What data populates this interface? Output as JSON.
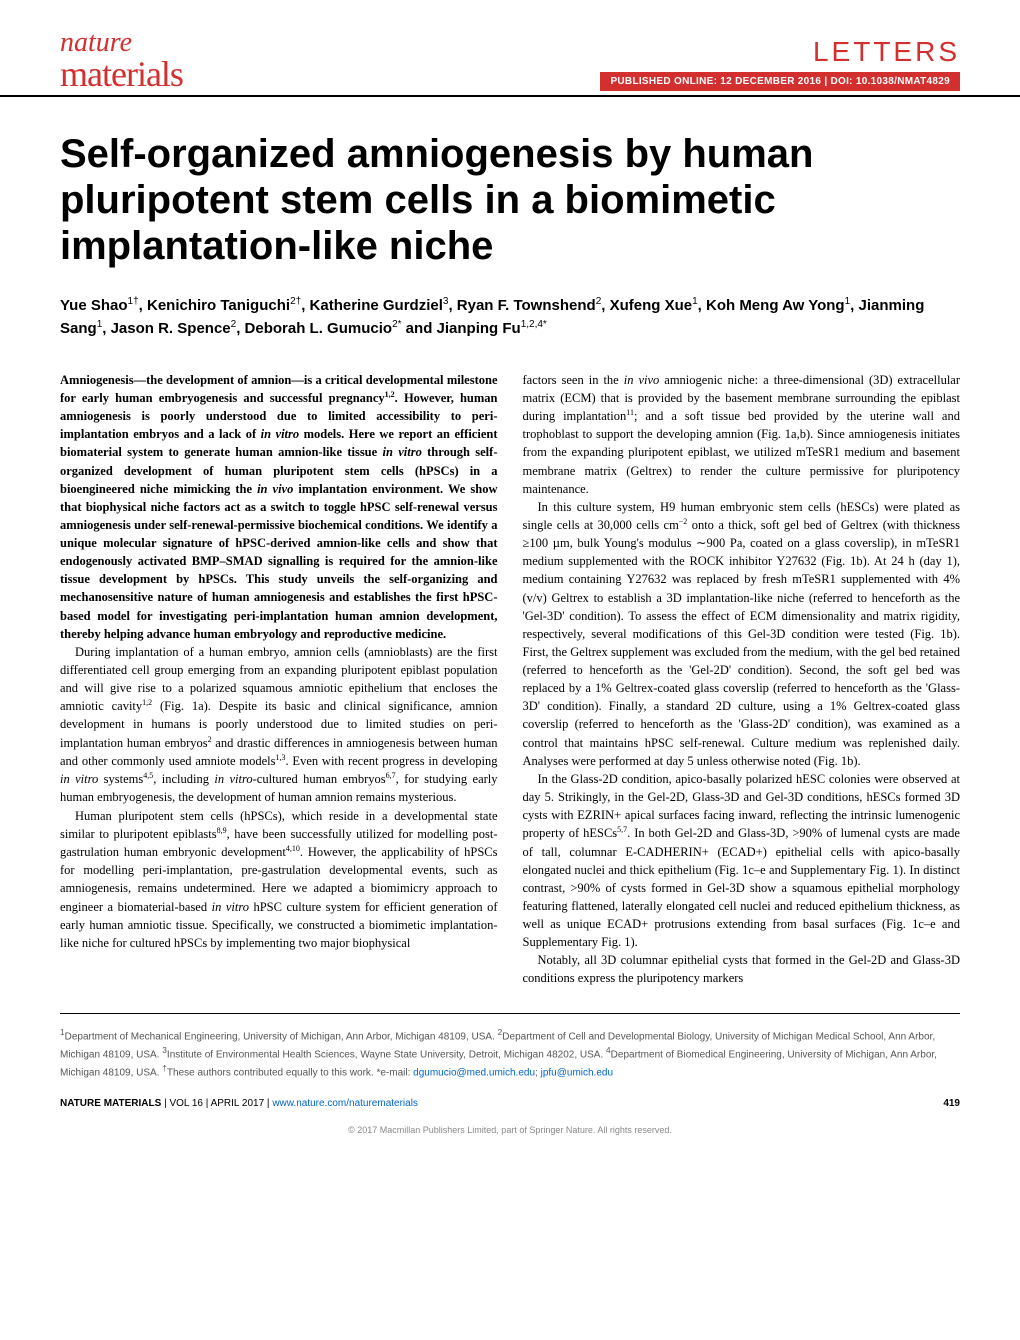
{
  "journal": {
    "line1": "nature",
    "line2": "materials",
    "brand_color": "#d32f2f"
  },
  "letters_label": "LETTERS",
  "pub_info": "PUBLISHED ONLINE: 12 DECEMBER 2016 | DOI: 10.1038/NMAT4829",
  "title": "Self-organized amniogenesis by human pluripotent stem cells in a biomimetic implantation-like niche",
  "authors_html": "Yue Shao<sup>1†</sup>, Kenichiro Taniguchi<sup>2†</sup>, Katherine Gurdziel<sup>3</sup>, Ryan F. Townshend<sup>2</sup>, Xufeng Xue<sup>1</sup>, Koh Meng Aw Yong<sup>1</sup>, Jianming Sang<sup>1</sup>, Jason R. Spence<sup>2</sup>, Deborah L. Gumucio<sup>2*</sup> and Jianping Fu<sup>1,2,4*</sup>",
  "abstract": "Amniogenesis—the development of amnion—is a critical developmental milestone for early human embryogenesis and successful pregnancy<sup>1,2</sup>. However, human amniogenesis is poorly understood due to limited accessibility to peri-implantation embryos and a lack of <em>in vitro</em> models. Here we report an efficient biomaterial system to generate human amnion-like tissue <em>in vitro</em> through self-organized development of human pluripotent stem cells (hPSCs) in a bioengineered niche mimicking the <em>in vivo</em> implantation environment. We show that biophysical niche factors act as a switch to toggle hPSC self-renewal versus amniogenesis under self-renewal-permissive biochemical conditions. We identify a unique molecular signature of hPSC-derived amnion-like cells and show that endogenously activated BMP–SMAD signalling is required for the amnion-like tissue development by hPSCs. This study unveils the self-organizing and mechanosensitive nature of human amniogenesis and establishes the first hPSC-based model for investigating peri-implantation human amnion development, thereby helping advance human embryology and reproductive medicine.",
  "col1_p1": "During implantation of a human embryo, amnion cells (amnioblasts) are the first differentiated cell group emerging from an expanding pluripotent epiblast population and will give rise to a polarized squamous amniotic epithelium that encloses the amniotic cavity<sup>1,2</sup> (Fig. 1a). Despite its basic and clinical significance, amnion development in humans is poorly understood due to limited studies on peri-implantation human embryos<sup>2</sup> and drastic differences in amniogenesis between human and other commonly used amniote models<sup>1,3</sup>. Even with recent progress in developing <em>in vitro</em> systems<sup>4,5</sup>, including <em>in vitro</em>-cultured human embryos<sup>6,7</sup>, for studying early human embryogenesis, the development of human amnion remains mysterious.",
  "col1_p2": "Human pluripotent stem cells (hPSCs), which reside in a developmental state similar to pluripotent epiblasts<sup>8,9</sup>, have been successfully utilized for modelling post-gastrulation human embryonic development<sup>4,10</sup>. However, the applicability of hPSCs for modelling peri-implantation, pre-gastrulation developmental events, such as amniogenesis, remains undetermined. Here we adapted a biomimicry approach to engineer a biomaterial-based <em>in vitro</em> hPSC culture system for efficient generation of early human amniotic tissue. Specifically, we constructed a biomimetic implantation-like niche for cultured hPSCs by implementing two major biophysical",
  "col2_p1": "factors seen in the <em>in vivo</em> amniogenic niche: a three-dimensional (3D) extracellular matrix (ECM) that is provided by the basement membrane surrounding the epiblast during implantation<sup>11</sup>; and a soft tissue bed provided by the uterine wall and trophoblast to support the developing amnion (Fig. 1a,b). Since amniogenesis initiates from the expanding pluripotent epiblast, we utilized mTeSR1 medium and basement membrane matrix (Geltrex) to render the culture permissive for pluripotency maintenance.",
  "col2_p2": "In this culture system, H9 human embryonic stem cells (hESCs) were plated as single cells at 30,000 cells cm<sup>−2</sup> onto a thick, soft gel bed of Geltrex (with thickness ≥100 µm, bulk Young's modulus ∼900 Pa, coated on a glass coverslip), in mTeSR1 medium supplemented with the ROCK inhibitor Y27632 (Fig. 1b). At 24 h (day 1), medium containing Y27632 was replaced by fresh mTeSR1 supplemented with 4% (v/v) Geltrex to establish a 3D implantation-like niche (referred to henceforth as the 'Gel-3D' condition). To assess the effect of ECM dimensionality and matrix rigidity, respectively, several modifications of this Gel-3D condition were tested (Fig. 1b). First, the Geltrex supplement was excluded from the medium, with the gel bed retained (referred to henceforth as the 'Gel-2D' condition). Second, the soft gel bed was replaced by a 1% Geltrex-coated glass coverslip (referred to henceforth as the 'Glass-3D' condition). Finally, a standard 2D culture, using a 1% Geltrex-coated glass coverslip (referred to henceforth as the 'Glass-2D' condition), was examined as a control that maintains hPSC self-renewal. Culture medium was replenished daily. Analyses were performed at day 5 unless otherwise noted (Fig. 1b).",
  "col2_p3": "In the Glass-2D condition, apico-basally polarized hESC colonies were observed at day 5. Strikingly, in the Gel-2D, Glass-3D and Gel-3D conditions, hESCs formed 3D cysts with EZRIN+ apical surfaces facing inward, reflecting the intrinsic lumenogenic property of hESCs<sup>5,7</sup>. In both Gel-2D and Glass-3D, >90% of lumenal cysts are made of tall, columnar E-CADHERIN+ (ECAD+) epithelial cells with apico-basally elongated nuclei and thick epithelium (Fig. 1c–e and Supplementary Fig. 1). In distinct contrast, >90% of cysts formed in Gel-3D show a squamous epithelial morphology featuring flattened, laterally elongated cell nuclei and reduced epithelium thickness, as well as unique ECAD+ protrusions extending from basal surfaces (Fig. 1c–e and Supplementary Fig. 1).",
  "col2_p4": "Notably, all 3D columnar epithelial cysts that formed in the Gel-2D and Glass-3D conditions express the pluripotency markers",
  "affiliations": "<sup>1</sup>Department of Mechanical Engineering, University of Michigan, Ann Arbor, Michigan 48109, USA. <sup>2</sup>Department of Cell and Developmental Biology, University of Michigan Medical School, Ann Arbor, Michigan 48109, USA. <sup>3</sup>Institute of Environmental Health Sciences, Wayne State University, Detroit, Michigan 48202, USA. <sup>4</sup>Department of Biomedical Engineering, University of Michigan, Ann Arbor, Michigan 48109, USA. <sup>†</sup>These authors contributed equally to this work. *e-mail: <a href=\"mailto:dgumucio@med.umich.edu\">dgumucio@med.umich.edu</a>; <a href=\"mailto:jpfu@umich.edu\">jpfu@umich.edu</a>",
  "footer_left": "<strong>NATURE MATERIALS</strong> | VOL 16 | APRIL 2017 | <a href=\"http://www.nature.com/naturematerials\">www.nature.com/naturematerials</a>",
  "page_number": "419",
  "copyright": "© 2017 Macmillan Publishers Limited, part of Springer Nature. All rights reserved."
}
